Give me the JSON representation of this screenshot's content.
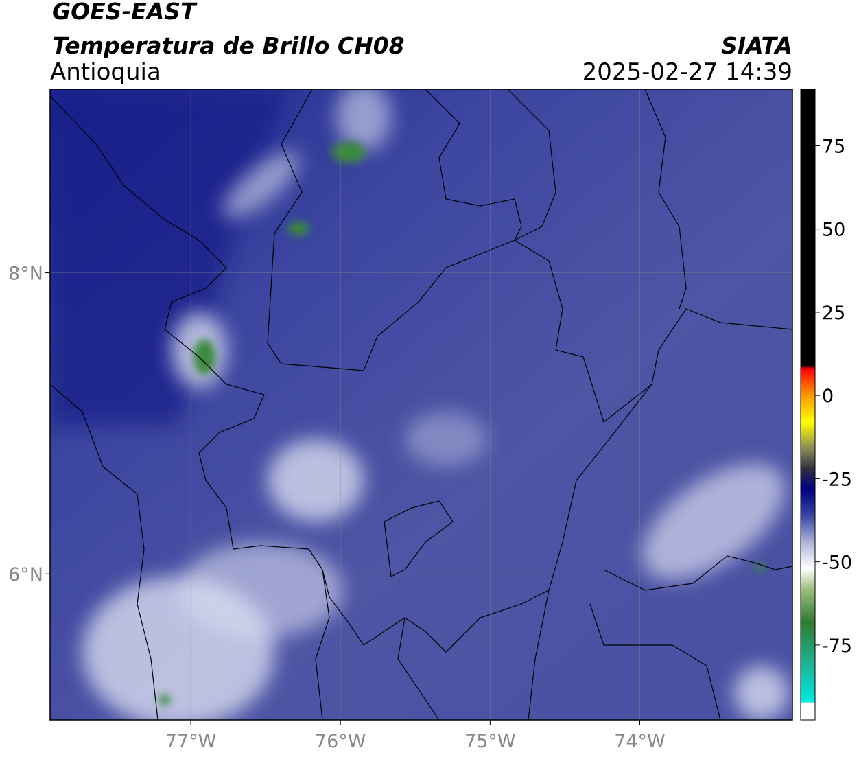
{
  "header": {
    "title": "GOES-EAST",
    "subtitle": "Temperatura de Brillo CH08",
    "region": "Antioquia",
    "source": "SIATA",
    "timestamp": "2025-02-27 14:39"
  },
  "map": {
    "xlim": [
      -77.94,
      -72.98
    ],
    "ylim": [
      5.03,
      9.22
    ],
    "xticks": [
      {
        "value": -77,
        "label": "77°W"
      },
      {
        "value": -76,
        "label": "76°W"
      },
      {
        "value": -75,
        "label": "75°W"
      },
      {
        "value": -74,
        "label": "74°W"
      }
    ],
    "yticks": [
      {
        "value": 6,
        "label": "6°N"
      },
      {
        "value": 8,
        "label": "8°N"
      }
    ],
    "grid": true
  },
  "colorbar": {
    "clim": [
      -97.5,
      92
    ],
    "ticks": [
      -75,
      -50,
      -25,
      0,
      25,
      50,
      75
    ],
    "stops": [
      {
        "value": 92,
        "color": "#000000"
      },
      {
        "value": 9,
        "color": "#000000"
      },
      {
        "value": 8,
        "color": "#ff0000"
      },
      {
        "value": 0,
        "color": "#ff9900"
      },
      {
        "value": -8,
        "color": "#ffff00"
      },
      {
        "value": -16,
        "color": "#8a8a55"
      },
      {
        "value": -22,
        "color": "#303040"
      },
      {
        "value": -28,
        "color": "#000080"
      },
      {
        "value": -36,
        "color": "#3a44a0"
      },
      {
        "value": -45,
        "color": "#b8c0e0"
      },
      {
        "value": -52,
        "color": "#ffffff"
      },
      {
        "value": -58,
        "color": "#a0c080"
      },
      {
        "value": -68,
        "color": "#2e7d2e"
      },
      {
        "value": -80,
        "color": "#20b090"
      },
      {
        "value": -92,
        "color": "#00e8e0"
      },
      {
        "value": -92.6,
        "color": "#ffffff"
      },
      {
        "value": -97.5,
        "color": "#ffffff"
      }
    ]
  }
}
